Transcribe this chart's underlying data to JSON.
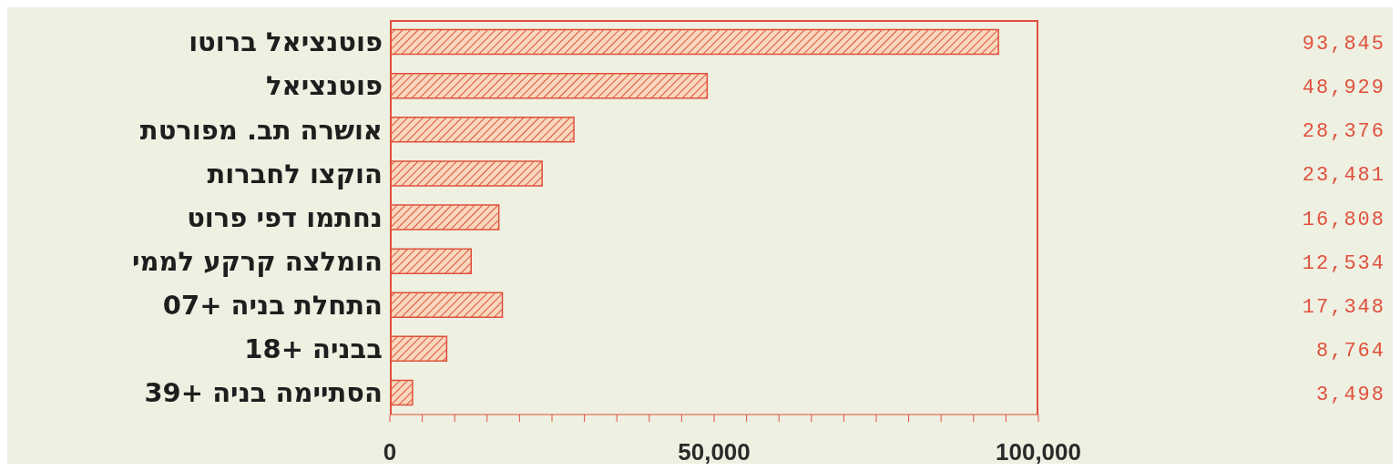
{
  "chart_data": {
    "type": "bar",
    "orientation": "horizontal",
    "categories": [
      "פוטנציאל ברוטו",
      "פוטנציאל",
      "אושרה תב. מפורטת",
      "הוקצו לחברות",
      "נחתמו דפי פרוט",
      "הומלצה קרקע לממי",
      "התחלת בניה +07",
      "בבניה +18",
      "הסתיימה בניה +39"
    ],
    "values": [
      93845,
      48929,
      28376,
      23481,
      16808,
      12534,
      17348,
      8764,
      3498
    ],
    "color": "#e0503c",
    "xlim": [
      0,
      100000
    ],
    "xticks": [
      {
        "value": 0,
        "label": "0"
      },
      {
        "value": 5000,
        "label": null
      },
      {
        "value": 10000,
        "label": null
      },
      {
        "value": 15000,
        "label": null
      },
      {
        "value": 20000,
        "label": null
      },
      {
        "value": 25000,
        "label": null
      },
      {
        "value": 30000,
        "label": null
      },
      {
        "value": 35000,
        "label": null
      },
      {
        "value": 40000,
        "label": null
      },
      {
        "value": 45000,
        "label": null
      },
      {
        "value": 50000,
        "label": "50,000"
      },
      {
        "value": 55000,
        "label": null
      },
      {
        "value": 60000,
        "label": null
      },
      {
        "value": 65000,
        "label": null
      },
      {
        "value": 70000,
        "label": null
      },
      {
        "value": 75000,
        "label": null
      },
      {
        "value": 80000,
        "label": null
      },
      {
        "value": 85000,
        "label": null
      },
      {
        "value": 90000,
        "label": null
      },
      {
        "value": 95000,
        "label": null
      },
      {
        "value": 100000,
        "label": "100,000"
      }
    ],
    "value_labels": [
      "93,845",
      "48,929",
      "28,376",
      "23,481",
      "16,808",
      "12,534",
      "17,348",
      "8,764",
      "3,498"
    ],
    "grid": false,
    "legend": false
  }
}
